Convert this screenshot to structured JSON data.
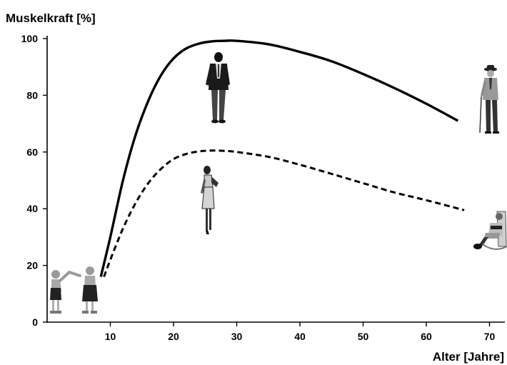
{
  "chart_data": {
    "type": "line",
    "title": "",
    "ylabel": "Muskelkraft [%]",
    "xlabel": "Alter [Jahre]",
    "xlim": [
      0,
      72
    ],
    "ylim": [
      0,
      100
    ],
    "x_ticks": [
      10,
      20,
      30,
      40,
      50,
      60,
      70
    ],
    "y_ticks": [
      0,
      20,
      40,
      60,
      80,
      100
    ],
    "grid": false,
    "legend": "none",
    "series": [
      {
        "style": "solid",
        "color": "#000000",
        "x": [
          8.5,
          10,
          12,
          14,
          16,
          18,
          20,
          22,
          24,
          26,
          28,
          30,
          35,
          40,
          45,
          50,
          55,
          60,
          65
        ],
        "y": [
          16,
          30,
          50,
          66,
          78,
          87,
          93,
          96.5,
          98.2,
          99,
          99.2,
          99.2,
          98,
          95.3,
          92,
          87.5,
          82.5,
          77,
          71
        ]
      },
      {
        "style": "dashed",
        "color": "#000000",
        "x": [
          9,
          10,
          12,
          14,
          16,
          18,
          20,
          22,
          24,
          26,
          28,
          30,
          35,
          40,
          45,
          50,
          55,
          60,
          66
        ],
        "y": [
          16,
          22,
          33,
          42,
          49,
          54,
          57.5,
          59.3,
          60.2,
          60.5,
          60.4,
          60,
          58.3,
          55.5,
          52.3,
          49,
          45.7,
          43,
          39.5
        ]
      }
    ]
  },
  "figures": [
    {
      "icon": "children-holding-hands-icon"
    },
    {
      "icon": "man-in-suit-icon"
    },
    {
      "icon": "woman-in-dress-icon"
    },
    {
      "icon": "elderly-man-with-cane-icon"
    },
    {
      "icon": "elderly-woman-in-rocking-chair-icon"
    }
  ]
}
